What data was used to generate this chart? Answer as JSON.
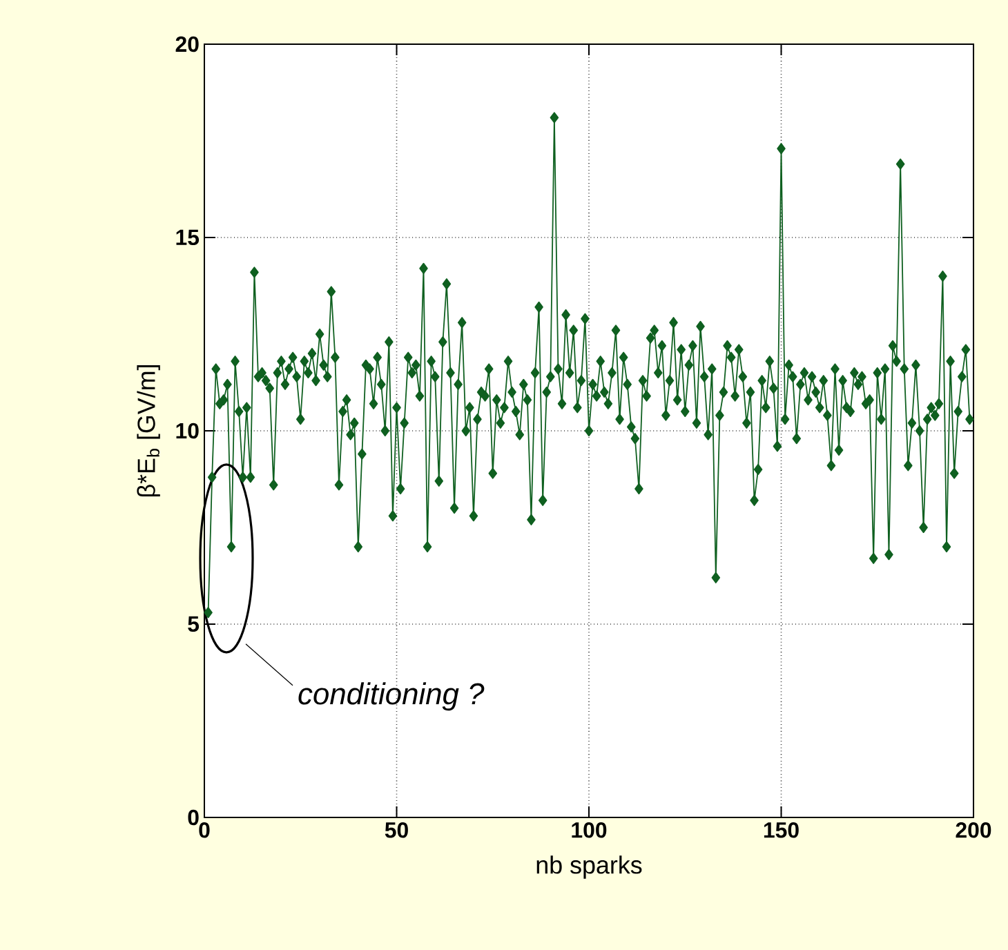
{
  "chart_data": {
    "type": "line",
    "xlabel": "nb sparks",
    "ylabel": "β*E$_{b}$  [GV/m]",
    "x": [
      1,
      2,
      3,
      4,
      5,
      6,
      7,
      8,
      9,
      10,
      11,
      12,
      13,
      14,
      15,
      16,
      17,
      18,
      19,
      20,
      21,
      22,
      23,
      24,
      25,
      26,
      27,
      28,
      29,
      30,
      31,
      32,
      33,
      34,
      35,
      36,
      37,
      38,
      39,
      40,
      41,
      42,
      43,
      44,
      45,
      46,
      47,
      48,
      49,
      50,
      51,
      52,
      53,
      54,
      55,
      56,
      57,
      58,
      59,
      60,
      61,
      62,
      63,
      64,
      65,
      66,
      67,
      68,
      69,
      70,
      71,
      72,
      73,
      74,
      75,
      76,
      77,
      78,
      79,
      80,
      81,
      82,
      83,
      84,
      85,
      86,
      87,
      88,
      89,
      90,
      91,
      92,
      93,
      94,
      95,
      96,
      97,
      98,
      99,
      100,
      101,
      102,
      103,
      104,
      105,
      106,
      107,
      108,
      109,
      110,
      111,
      112,
      113,
      114,
      115,
      116,
      117,
      118,
      119,
      120,
      121,
      122,
      123,
      124,
      125,
      126,
      127,
      128,
      129,
      130,
      131,
      132,
      133,
      134,
      135,
      136,
      137,
      138,
      139,
      140,
      141,
      142,
      143,
      144,
      145,
      146,
      147,
      148,
      149,
      150,
      151,
      152,
      153,
      154,
      155,
      156,
      157,
      158,
      159,
      160,
      161,
      162,
      163,
      164,
      165,
      166,
      167,
      168,
      169,
      170,
      171,
      172,
      173,
      174,
      175,
      176,
      177,
      178,
      179,
      180,
      181,
      182,
      183,
      184,
      185,
      186,
      187,
      188,
      189,
      190,
      191,
      192,
      193,
      194,
      195,
      196,
      197,
      198,
      199
    ],
    "series": [
      {
        "color": "#0f6020",
        "values": [
          5.3,
          8.8,
          11.6,
          10.7,
          10.8,
          11.2,
          7.0,
          11.8,
          10.5,
          8.8,
          10.6,
          8.8,
          14.1,
          11.4,
          11.5,
          11.3,
          11.1,
          8.6,
          11.5,
          11.8,
          11.2,
          11.6,
          11.9,
          11.4,
          10.3,
          11.8,
          11.5,
          12.0,
          11.3,
          12.5,
          11.7,
          11.4,
          13.6,
          11.9,
          8.6,
          10.5,
          10.8,
          9.9,
          10.2,
          7.0,
          9.4,
          11.7,
          11.6,
          10.7,
          11.9,
          11.2,
          10.0,
          12.3,
          7.8,
          10.6,
          8.5,
          10.2,
          11.9,
          11.5,
          11.7,
          10.9,
          14.2,
          7.0,
          11.8,
          11.4,
          8.7,
          12.3,
          13.8,
          11.5,
          8.0,
          11.2,
          12.8,
          10.0,
          10.6,
          7.8,
          10.3,
          11.0,
          10.9,
          11.6,
          8.9,
          10.8,
          10.2,
          10.6,
          11.8,
          11.0,
          10.5,
          9.9,
          11.2,
          10.8,
          7.7,
          11.5,
          13.2,
          8.2,
          11.0,
          11.4,
          18.1,
          11.6,
          10.7,
          13.0,
          11.5,
          12.6,
          10.6,
          11.3,
          12.9,
          10.0,
          11.2,
          10.9,
          11.8,
          11.0,
          10.7,
          11.5,
          12.6,
          10.3,
          11.9,
          11.2,
          10.1,
          9.8,
          8.5,
          11.3,
          10.9,
          12.4,
          12.6,
          11.5,
          12.2,
          10.4,
          11.3,
          12.8,
          10.8,
          12.1,
          10.5,
          11.7,
          12.2,
          10.2,
          12.7,
          11.4,
          9.9,
          11.6,
          6.2,
          10.4,
          11.0,
          12.2,
          11.9,
          10.9,
          12.1,
          11.4,
          10.2,
          11.0,
          8.2,
          9.0,
          11.3,
          10.6,
          11.8,
          11.1,
          9.6,
          17.3,
          10.3,
          11.7,
          11.4,
          9.8,
          11.2,
          11.5,
          10.8,
          11.4,
          11.0,
          10.6,
          11.3,
          10.4,
          9.1,
          11.6,
          9.5,
          11.3,
          10.6,
          10.5,
          11.5,
          11.2,
          11.4,
          10.7,
          10.8,
          6.7,
          11.5,
          10.3,
          11.6,
          6.8,
          12.2,
          11.8,
          16.9,
          11.6,
          9.1,
          10.2,
          11.7,
          10.0,
          7.5,
          10.3,
          10.6,
          10.4,
          10.7,
          14.0,
          7.0,
          11.8,
          8.9,
          10.5,
          11.4,
          12.1,
          10.3
        ]
      }
    ],
    "xlim": [
      0,
      200
    ],
    "ylim": [
      0,
      20
    ],
    "xticks": [
      0,
      50,
      100,
      150,
      200
    ],
    "yticks": [
      0,
      5,
      10,
      15,
      20
    ],
    "grid": true,
    "marker": "diamond",
    "line_style": "solid",
    "annotations": [
      "conditioning ?"
    ]
  }
}
